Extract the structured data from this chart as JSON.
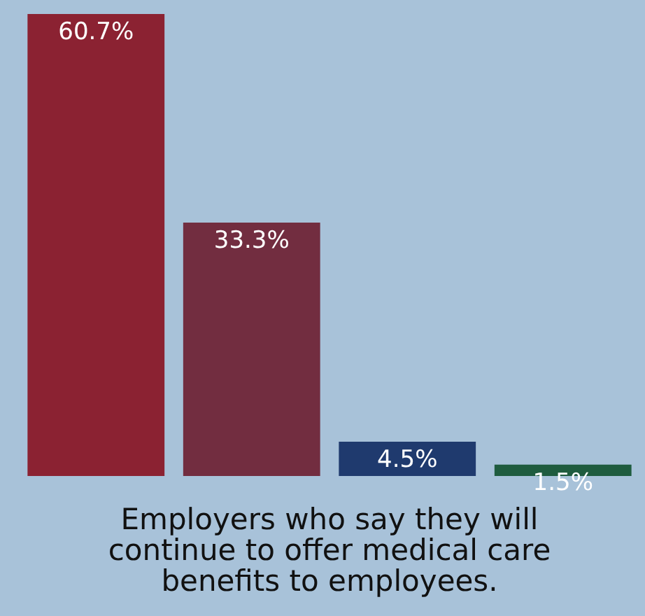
{
  "chart_data": {
    "type": "bar",
    "title": "Employers who say they will continue to offer medical care benefits to employees.",
    "categories": [
      null,
      null,
      null,
      null
    ],
    "values": [
      60.7,
      33.3,
      4.5,
      1.5
    ],
    "colors": [
      "#8b2232",
      "#722d40",
      "#1f3a6e",
      "#1f5c3f"
    ],
    "value_labels": [
      "60.7%",
      "33.3%",
      "4.5%",
      "1.5%"
    ]
  }
}
